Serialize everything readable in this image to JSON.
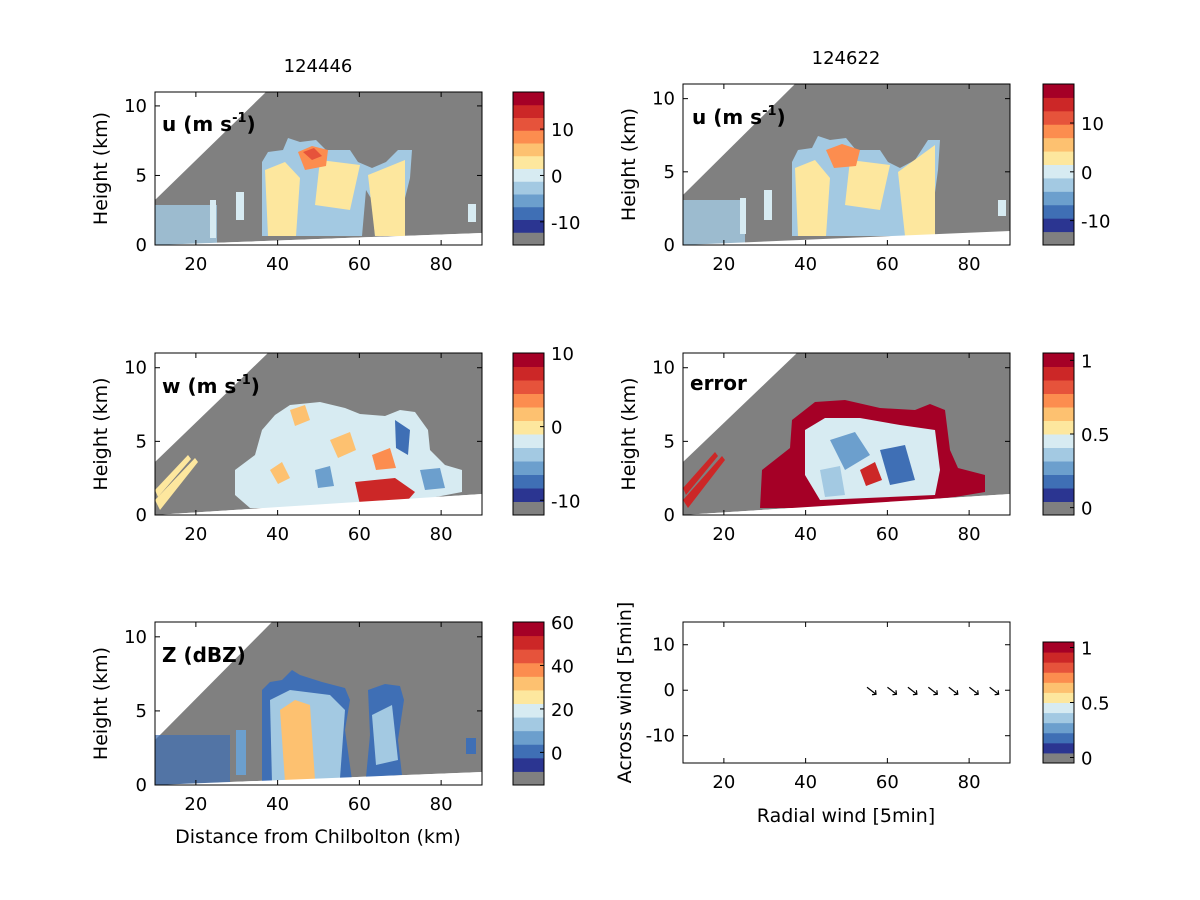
{
  "colors": {
    "gray": "#808080",
    "scale": [
      "#808080",
      "#2b3591",
      "#3f6fb5",
      "#6c9fcd",
      "#a3c9e2",
      "#d7ebf2",
      "#fde79e",
      "#fdc170",
      "#fc8d4f",
      "#e6533b",
      "#cc2727",
      "#a50026"
    ],
    "arrow": "#000000"
  },
  "titles": {
    "left": "124446",
    "right": "124622"
  },
  "xlabels": {
    "left_bottom": "Distance from Chilbolton (km)",
    "right_bottom": "Radial wind [5min]"
  },
  "labels": {
    "u1": "u (m s",
    "u1_sup": "-1",
    "u1_close": ")",
    "u2": "u (m s",
    "u2_sup": "-1",
    "u2_close": ")",
    "w": "w (m s",
    "w_sup": "-1",
    "w_close": ")",
    "error": "error",
    "z": "Z (dBZ)"
  },
  "panels": [
    {
      "id": "u-left",
      "ylabel": "Height (km)",
      "xticks": [
        "20",
        "40",
        "60",
        "80"
      ],
      "yticks": [
        "0",
        "5",
        "10"
      ],
      "cbar_ticks": [
        "10",
        "0",
        "-10"
      ]
    },
    {
      "id": "u-right",
      "ylabel": "Height (km)",
      "xticks": [
        "20",
        "40",
        "60",
        "80"
      ],
      "yticks": [
        "0",
        "5",
        "10"
      ],
      "cbar_ticks": [
        "10",
        "0",
        "-10"
      ]
    },
    {
      "id": "w-left",
      "ylabel": "Height (km)",
      "xticks": [
        "20",
        "40",
        "60",
        "80"
      ],
      "yticks": [
        "0",
        "5",
        "10"
      ],
      "cbar_ticks": [
        "10",
        "0",
        "-10"
      ]
    },
    {
      "id": "error-right",
      "ylabel": "Height (km)",
      "xticks": [
        "20",
        "40",
        "60",
        "80"
      ],
      "yticks": [
        "0",
        "5",
        "10"
      ],
      "cbar_ticks": [
        "1",
        "0.5",
        "0"
      ]
    },
    {
      "id": "z-left",
      "ylabel": "Height (km)",
      "xticks": [
        "20",
        "40",
        "60",
        "80"
      ],
      "yticks": [
        "0",
        "5",
        "10"
      ],
      "cbar_ticks": [
        "60",
        "40",
        "20",
        "0"
      ]
    },
    {
      "id": "wind-right",
      "ylabel": "Across wind [5min]",
      "xticks": [
        "20",
        "40",
        "60",
        "80"
      ],
      "yticks": [
        "10",
        "0",
        "-10"
      ],
      "cbar_ticks": [
        "1",
        "0.5",
        "0"
      ]
    }
  ],
  "chart_data": [
    {
      "type": "heatmap",
      "title": "124446",
      "field": "u (m s-1)",
      "xlabel": "",
      "ylabel": "Height (km)",
      "xlim": [
        10,
        90
      ],
      "ylim": [
        0,
        11
      ],
      "colorbar_range": [
        -15,
        18
      ],
      "colorbar_ticks": [
        -10,
        0,
        10
      ]
    },
    {
      "type": "heatmap",
      "title": "124622",
      "field": "u (m s-1)",
      "xlabel": "",
      "ylabel": "Height (km)",
      "xlim": [
        10,
        90
      ],
      "ylim": [
        0,
        11
      ],
      "colorbar_range": [
        -15,
        18
      ],
      "colorbar_ticks": [
        -10,
        0,
        10
      ]
    },
    {
      "type": "heatmap",
      "field": "w (m s-1)",
      "xlabel": "",
      "ylabel": "Height (km)",
      "xlim": [
        10,
        90
      ],
      "ylim": [
        0,
        11
      ],
      "colorbar_range": [
        -12,
        10
      ],
      "colorbar_ticks": [
        -10,
        0,
        10
      ]
    },
    {
      "type": "heatmap",
      "field": "error",
      "xlabel": "",
      "ylabel": "Height (km)",
      "xlim": [
        10,
        90
      ],
      "ylim": [
        0,
        11
      ],
      "colorbar_range": [
        -0.05,
        1.05
      ],
      "colorbar_ticks": [
        0,
        0.5,
        1
      ]
    },
    {
      "type": "heatmap",
      "field": "Z (dBZ)",
      "xlabel": "Distance from Chilbolton (km)",
      "ylabel": "Height (km)",
      "xlim": [
        10,
        90
      ],
      "ylim": [
        0,
        11
      ],
      "colorbar_range": [
        -15,
        60
      ],
      "colorbar_ticks": [
        0,
        20,
        40,
        60
      ]
    },
    {
      "type": "scatter",
      "marker": "arrow",
      "xlabel": "Radial wind [5min]",
      "ylabel": "Across wind [5min]",
      "xlim": [
        10,
        90
      ],
      "ylim": [
        -16,
        15
      ],
      "x": [
        56,
        61,
        66,
        71,
        76,
        81,
        86
      ],
      "y": [
        0,
        0,
        0,
        0,
        0,
        0,
        0
      ],
      "colorbar_range": [
        -0.05,
        1.05
      ],
      "colorbar_ticks": [
        0,
        0.5,
        1
      ]
    }
  ]
}
